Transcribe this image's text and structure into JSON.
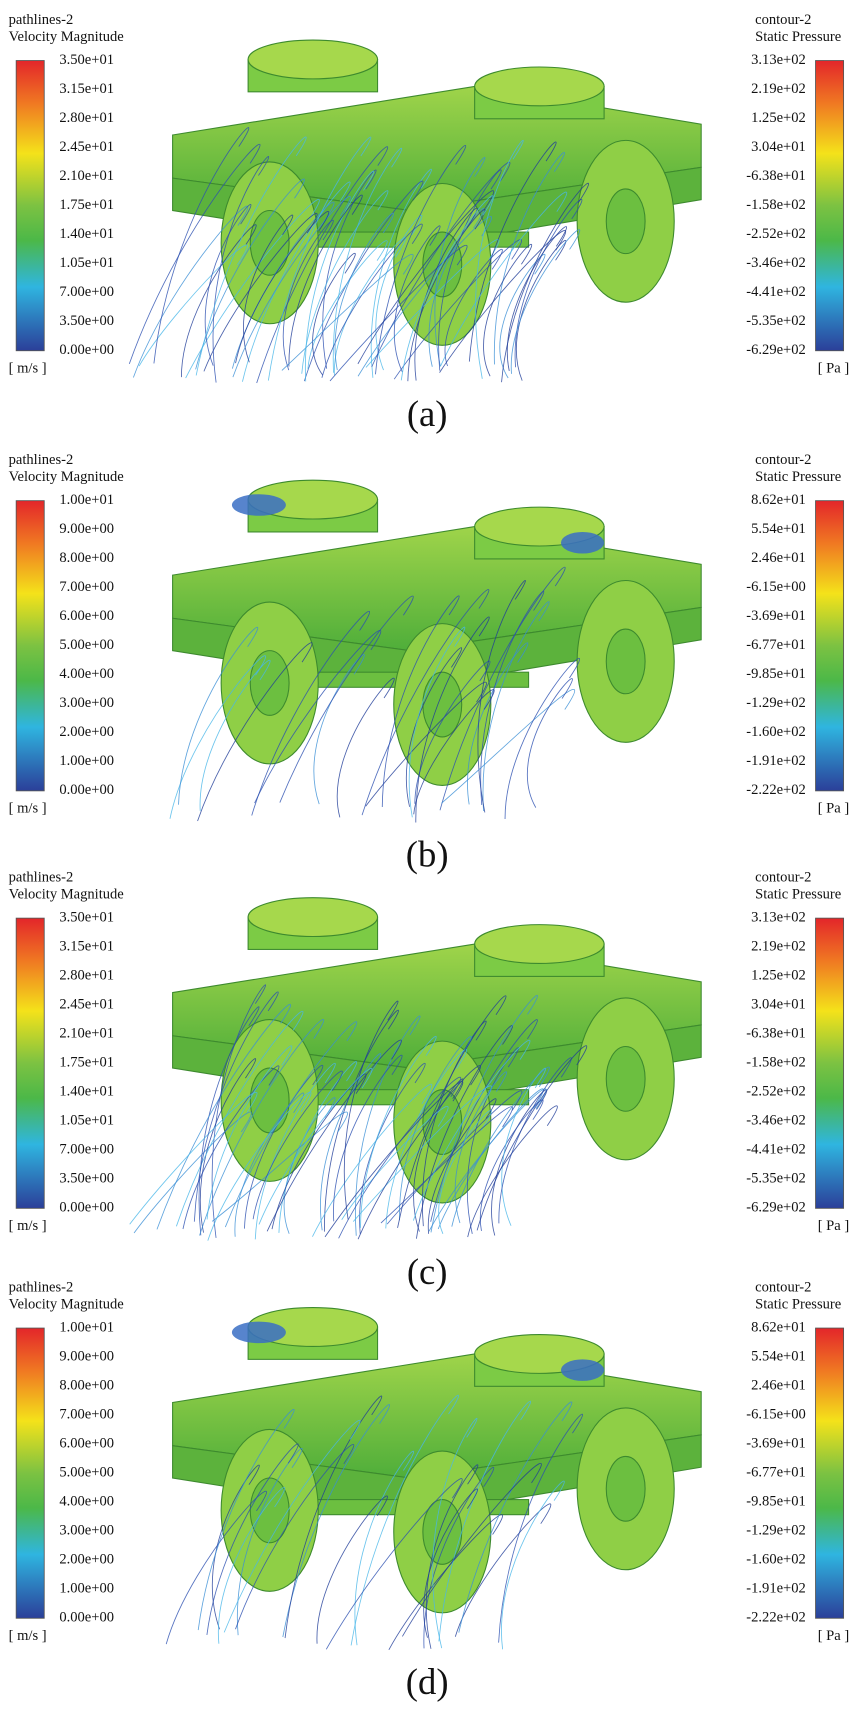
{
  "panels": [
    {
      "left": {
        "title": [
          "pathlines-2",
          "Velocity Magnitude"
        ],
        "ticks": [
          "3.50e+01",
          "3.15e+01",
          "2.80e+01",
          "2.45e+01",
          "2.10e+01",
          "1.75e+01",
          "1.40e+01",
          "1.05e+01",
          "7.00e+00",
          "3.50e+00",
          "0.00e+00"
        ],
        "unit": "[ m/s ]"
      },
      "right": {
        "title": [
          "contour-2",
          "Static Pressure"
        ],
        "ticks": [
          "3.13e+02",
          "2.19e+02",
          "1.25e+02",
          "3.04e+01",
          "-6.38e+01",
          "-1.58e+02",
          "-2.52e+02",
          "-3.46e+02",
          "-4.41e+02",
          "-5.35e+02",
          "-6.29e+02"
        ],
        "unit": "[ Pa ]"
      },
      "caption": "(a)"
    },
    {
      "left": {
        "title": [
          "pathlines-2",
          "Velocity Magnitude"
        ],
        "ticks": [
          "1.00e+01",
          "9.00e+00",
          "8.00e+00",
          "7.00e+00",
          "6.00e+00",
          "5.00e+00",
          "4.00e+00",
          "3.00e+00",
          "2.00e+00",
          "1.00e+00",
          "0.00e+00"
        ],
        "unit": "[ m/s ]"
      },
      "right": {
        "title": [
          "contour-2",
          "Static Pressure"
        ],
        "ticks": [
          "8.62e+01",
          "5.54e+01",
          "2.46e+01",
          "-6.15e+00",
          "-3.69e+01",
          "-6.77e+01",
          "-9.85e+01",
          "-1.29e+02",
          "-1.60e+02",
          "-1.91e+02",
          "-2.22e+02"
        ],
        "unit": "[ Pa ]"
      },
      "caption": "(b)"
    },
    {
      "left": {
        "title": [
          "pathlines-2",
          "Velocity Magnitude"
        ],
        "ticks": [
          "3.50e+01",
          "3.15e+01",
          "2.80e+01",
          "2.45e+01",
          "2.10e+01",
          "1.75e+01",
          "1.40e+01",
          "1.05e+01",
          "7.00e+00",
          "3.50e+00",
          "0.00e+00"
        ],
        "unit": "[ m/s ]"
      },
      "right": {
        "title": [
          "contour-2",
          "Static Pressure"
        ],
        "ticks": [
          "3.13e+02",
          "2.19e+02",
          "1.25e+02",
          "3.04e+01",
          "-6.38e+01",
          "-1.58e+02",
          "-2.52e+02",
          "-3.46e+02",
          "-4.41e+02",
          "-5.35e+02",
          "-6.29e+02"
        ],
        "unit": "[ Pa ]"
      },
      "caption": "(c)"
    },
    {
      "left": {
        "title": [
          "pathlines-2",
          "Velocity Magnitude"
        ],
        "ticks": [
          "1.00e+01",
          "9.00e+00",
          "8.00e+00",
          "7.00e+00",
          "6.00e+00",
          "5.00e+00",
          "4.00e+00",
          "3.00e+00",
          "2.00e+00",
          "1.00e+00",
          "0.00e+00"
        ],
        "unit": "[ m/s ]"
      },
      "right": {
        "title": [
          "contour-2",
          "Static Pressure"
        ],
        "ticks": [
          "8.62e+01",
          "5.54e+01",
          "2.46e+01",
          "-6.15e+00",
          "-3.69e+01",
          "-6.77e+01",
          "-9.85e+01",
          "-1.29e+02",
          "-1.60e+02",
          "-1.91e+02",
          "-2.22e+02"
        ],
        "unit": "[ Pa ]"
      },
      "caption": "(d)"
    }
  ]
}
